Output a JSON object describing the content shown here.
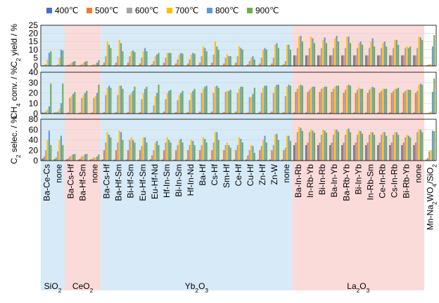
{
  "chart_data": [
    {
      "type": "bar",
      "ylabel_main": "C",
      "ylabel_sub": "2",
      "ylabel_rest": " yield / %",
      "ylim": [
        0,
        25
      ],
      "yticks": [
        "0",
        "5",
        "10",
        "15",
        "20",
        "25"
      ],
      "categories": [
        "Ba-Ce-Cs",
        "none",
        "Ba-Cs-Hf",
        "Ba-Hf-Sm",
        "none",
        "Ba-Cs-Hf",
        "Ba-Hf-Sm",
        "Bi-Hf-Sm",
        "Eu-Hf-Sm",
        "Eu-Hf-Nd",
        "Hf-In-Sm",
        "Bi-In-Sm",
        "Hf-In-Nd",
        "Ba-Hf",
        "Cs-Hf",
        "Sm-Hf",
        "Ce-Hf",
        "Cu-Hf",
        "Zn-Hf",
        "Zn-W",
        "none",
        "Ba-In-Rb",
        "In-Rb-Yb",
        "Bi-In-Rb",
        "Ba-In-Yb",
        "Ba-Rb-Yb",
        "Bi-In-Yb",
        "In-Rb-Sm",
        "Ce-In-Rb",
        "Cs-In-Rb",
        "Bi-Rb-Yb",
        "none",
        "Mn-Na2WO4/SiO2"
      ],
      "series": [
        {
          "name": "400℃",
          "values": [
            0.3,
            0.2,
            0.3,
            0.2,
            0.2,
            0.5,
            0.5,
            0.4,
            0.4,
            0.3,
            0.3,
            0.3,
            0.3,
            0.4,
            0.4,
            0.3,
            0.3,
            0.3,
            0.3,
            0.3,
            0.3,
            6.5,
            6.5,
            6.5,
            6.5,
            6.5,
            6.5,
            6.5,
            6.5,
            6.5,
            6.5,
            6.5,
            0.3
          ]
        },
        {
          "name": "500℃",
          "values": [
            0.5,
            0.4,
            0.6,
            0.5,
            0.5,
            2,
            2,
            2,
            1.5,
            1,
            2,
            1.5,
            1.5,
            2,
            2,
            1.5,
            2,
            1,
            1.5,
            1.5,
            1,
            6.5,
            6.5,
            6.5,
            6.5,
            6.5,
            6.5,
            6.5,
            6.5,
            6.5,
            6.5,
            6.5,
            0.5
          ]
        },
        {
          "name": "600℃",
          "values": [
            1,
            1,
            1,
            1,
            1,
            6,
            6,
            6,
            5,
            3,
            5,
            4,
            4,
            6,
            7,
            5,
            6,
            3,
            5,
            5,
            3,
            11,
            11,
            11,
            11,
            11,
            11,
            11,
            11,
            11,
            11,
            11,
            1
          ]
        },
        {
          "name": "700℃",
          "values": [
            4,
            5,
            2,
            2,
            1,
            15,
            16,
            9,
            9,
            6,
            8,
            7,
            7,
            12,
            15,
            7,
            12,
            5,
            10,
            13,
            13,
            18,
            18,
            16,
            17,
            18,
            14,
            15,
            14,
            16,
            12,
            18,
            1
          ]
        },
        {
          "name": "800℃",
          "values": [
            8,
            10,
            2.5,
            2.5,
            2,
            13,
            14,
            9.5,
            11,
            7,
            8,
            8,
            8,
            11,
            12,
            6,
            11,
            6,
            11,
            14,
            13,
            18.5,
            17,
            17.5,
            18.5,
            18,
            15,
            17,
            15,
            16,
            11,
            17.5,
            12
          ]
        },
        {
          "name": "900℃",
          "values": [
            9,
            9.5,
            3,
            3,
            3.5,
            11,
            9,
            8.5,
            9,
            8,
            8,
            7.5,
            7.5,
            9,
            10,
            6,
            10,
            4,
            10,
            11,
            10,
            15,
            14,
            14,
            15,
            14,
            13,
            12,
            12,
            13,
            12,
            16,
            19
          ]
        }
      ]
    },
    {
      "type": "bar",
      "ylabel_main": "CH",
      "ylabel_sub": "4",
      "ylabel_rest": " conv. / %",
      "ylim": [
        0,
        40
      ],
      "yticks": [
        "0",
        "10",
        "20",
        "30",
        "40"
      ],
      "categories": [
        "Ba-Ce-Cs",
        "none",
        "Ba-Cs-Hf",
        "Ba-Hf-Sm",
        "none",
        "Ba-Cs-Hf",
        "Ba-Hf-Sm",
        "Bi-Hf-Sm",
        "Eu-Hf-Sm",
        "Eu-Hf-Nd",
        "Hf-In-Sm",
        "Bi-In-Sm",
        "Hf-In-Nd",
        "Ba-Hf",
        "Cs-Hf",
        "Sm-Hf",
        "Ce-Hf",
        "Cu-Hf",
        "Zn-Hf",
        "Zn-W",
        "none",
        "Ba-In-Rb",
        "In-Rb-Yb",
        "Bi-In-Rb",
        "Ba-In-Yb",
        "Ba-Rb-Yb",
        "Bi-In-Yb",
        "In-Rb-Sm",
        "Ce-In-Rb",
        "Cs-In-Rb",
        "Bi-Rb-Yb",
        "none",
        "Mn-Na2WO4/SiO2"
      ],
      "series": [
        {
          "name": "400℃",
          "values": [
            1,
            1,
            0.5,
            0.5,
            0.5,
            0.5,
            0.5,
            0.5,
            0.5,
            0.5,
            0.5,
            0.5,
            0.5,
            0.5,
            0.5,
            0.5,
            0.5,
            0.5,
            0.5,
            0.5,
            0.5,
            1,
            1,
            1,
            1,
            1,
            1,
            1,
            1,
            1,
            1,
            1,
            0.5
          ]
        },
        {
          "name": "500℃",
          "values": [
            1,
            1,
            1,
            1,
            1,
            1.5,
            1.5,
            1.5,
            1.5,
            1,
            2,
            1.5,
            1.5,
            2,
            2,
            1.5,
            2,
            1,
            2,
            2,
            1.5,
            21,
            21,
            21,
            21,
            20,
            20,
            20,
            20,
            20,
            20,
            20,
            0.5
          ]
        },
        {
          "name": "600℃",
          "values": [
            2,
            2,
            15,
            15,
            15,
            18,
            18,
            18,
            14,
            8,
            14,
            13,
            13,
            20,
            20,
            21,
            20,
            16,
            20,
            20,
            17,
            24,
            23,
            24,
            24,
            23,
            23,
            23,
            22,
            22,
            22,
            22,
            1
          ]
        },
        {
          "name": "700℃",
          "values": [
            4,
            5,
            17,
            18,
            17,
            25,
            27,
            20,
            20,
            17,
            20,
            18,
            20,
            24,
            26,
            22,
            24,
            16,
            25,
            26,
            26,
            27,
            25,
            25,
            26,
            27,
            25,
            25,
            24,
            24,
            23,
            28,
            2
          ]
        },
        {
          "name": "800℃",
          "values": [
            7,
            10,
            19,
            20,
            20,
            27,
            27,
            22,
            24,
            20,
            22,
            20,
            22,
            26,
            27,
            22,
            26,
            19,
            27,
            28,
            28,
            28,
            26,
            26,
            27,
            28,
            24,
            26,
            24,
            24,
            23,
            29,
            21
          ]
        },
        {
          "name": "900℃",
          "values": [
            29,
            29,
            21,
            22,
            28,
            25,
            24,
            26,
            26,
            28,
            23,
            22,
            24,
            27,
            25,
            23,
            26,
            25,
            27,
            28,
            27,
            27,
            26,
            26,
            27,
            27,
            24,
            25,
            24,
            25,
            23,
            28,
            34
          ]
        }
      ]
    },
    {
      "type": "bar",
      "ylabel_main": "C",
      "ylabel_sub": "2",
      "ylabel_rest": " selec. / %",
      "ylim": [
        0,
        80
      ],
      "yticks": [
        "0",
        "20",
        "40",
        "60",
        "80"
      ],
      "categories": [
        "Ba-Ce-Cs",
        "none",
        "Ba-Cs-Hf",
        "Ba-Hf-Sm",
        "none",
        "Ba-Cs-Hf",
        "Ba-Hf-Sm",
        "Bi-Hf-Sm",
        "Eu-Hf-Sm",
        "Eu-Hf-Nd",
        "Hf-In-Sm",
        "Bi-In-Sm",
        "Hf-In-Nd",
        "Ba-Hf",
        "Cs-Hf",
        "Sm-Hf",
        "Ce-Hf",
        "Cu-Hf",
        "Zn-Hf",
        "Zn-W",
        "none",
        "Ba-In-Rb",
        "In-Rb-Yb",
        "Bi-In-Rb",
        "Ba-In-Yb",
        "Ba-Rb-Yb",
        "Bi-In-Yb",
        "In-Rb-Sm",
        "Ce-In-Rb",
        "Cs-In-Rb",
        "Bi-Rb-Yb",
        "none",
        "Mn-Na2WO4/SiO2"
      ],
      "series": [
        {
          "name": "400℃",
          "values": [
            4,
            3,
            2,
            2,
            2,
            2,
            2,
            2,
            2,
            2,
            2,
            2,
            2,
            2,
            2,
            2,
            2,
            2,
            2,
            2,
            2,
            30,
            30,
            30,
            30,
            30,
            30,
            30,
            30,
            30,
            30,
            30,
            2
          ]
        },
        {
          "name": "500℃",
          "values": [
            8,
            6,
            4,
            4,
            3,
            20,
            20,
            20,
            20,
            10,
            20,
            20,
            20,
            20,
            20,
            20,
            20,
            10,
            20,
            20,
            20,
            35,
            35,
            35,
            35,
            35,
            35,
            35,
            35,
            35,
            35,
            35,
            5
          ]
        },
        {
          "name": "600℃",
          "values": [
            20,
            18,
            8,
            8,
            6,
            35,
            35,
            40,
            28,
            20,
            35,
            30,
            30,
            30,
            35,
            30,
            30,
            20,
            28,
            30,
            25,
            55,
            55,
            50,
            50,
            50,
            50,
            50,
            50,
            50,
            45,
            55,
            18
          ]
        },
        {
          "name": "700℃",
          "values": [
            40,
            40,
            10,
            10,
            6,
            55,
            58,
            45,
            45,
            35,
            45,
            40,
            40,
            45,
            55,
            35,
            45,
            30,
            40,
            50,
            48,
            65,
            60,
            60,
            60,
            60,
            58,
            55,
            55,
            55,
            50,
            60,
            20
          ]
        },
        {
          "name": "800℃",
          "values": [
            58,
            48,
            12,
            12,
            8,
            50,
            55,
            40,
            45,
            38,
            40,
            42,
            38,
            42,
            55,
            30,
            42,
            28,
            48,
            52,
            48,
            63,
            58,
            58,
            60,
            62,
            57,
            55,
            55,
            55,
            48,
            60,
            58
          ]
        },
        {
          "name": "900℃",
          "values": [
            30,
            30,
            13,
            13,
            12,
            45,
            40,
            35,
            35,
            30,
            35,
            35,
            30,
            35,
            40,
            25,
            35,
            15,
            35,
            40,
            38,
            57,
            54,
            54,
            56,
            55,
            52,
            50,
            48,
            50,
            45,
            55,
            57
          ]
        }
      ]
    }
  ],
  "legend": [
    {
      "label": "400℃",
      "color": "#4472C4"
    },
    {
      "label": "500℃",
      "color": "#ED7D31"
    },
    {
      "label": "600℃",
      "color": "#A5A5A5"
    },
    {
      "label": "700℃",
      "color": "#FFC000"
    },
    {
      "label": "800℃",
      "color": "#5B9BD5"
    },
    {
      "label": "900℃",
      "color": "#70AD47"
    }
  ],
  "x_labels": [
    {
      "text": "Ba-Ce-Cs"
    },
    {
      "text": "none"
    },
    {
      "text": "Ba-Cs-Hf"
    },
    {
      "text": "Ba-Hf-Sm"
    },
    {
      "text": "none"
    },
    {
      "text": "Ba-Cs-Hf"
    },
    {
      "text": "Ba-Hf-Sm"
    },
    {
      "text": "Bi-Hf-Sm"
    },
    {
      "text": "Eu-Hf-Sm"
    },
    {
      "text": "Eu-Hf-Nd"
    },
    {
      "text": "Hf-In-Sm"
    },
    {
      "text": "Bi-In-Sm"
    },
    {
      "text": "Hf-In-Nd"
    },
    {
      "text": "Ba-Hf"
    },
    {
      "text": "Cs-Hf"
    },
    {
      "text": "Sm-Hf"
    },
    {
      "text": "Ce-Hf"
    },
    {
      "text": "Cu-Hf"
    },
    {
      "text": "Zn-Hf"
    },
    {
      "text": "Zn-W"
    },
    {
      "text": "none"
    },
    {
      "text": "Ba-In-Rb"
    },
    {
      "text": "In-Rb-Yb"
    },
    {
      "text": "Bi-In-Rb"
    },
    {
      "text": "Ba-In-Yb"
    },
    {
      "text": "Ba-Rb-Yb"
    },
    {
      "text": "Bi-In-Yb"
    },
    {
      "text": "In-Rb-Sm"
    },
    {
      "text": "Ce-In-Rb"
    },
    {
      "text": "Cs-In-Rb"
    },
    {
      "text": "Bi-Rb-Yb"
    },
    {
      "text": "none"
    },
    {
      "text": "Mn-Na",
      "sub": "2",
      "rest": "WO",
      "sub2": "4",
      "rest2": "/SiO",
      "sub3": "2"
    }
  ],
  "supports": [
    {
      "label": "SiO",
      "sub": "2",
      "color": "#D6EAF8",
      "text_color": "#2E75B6",
      "from": 0,
      "to": 1
    },
    {
      "label": "CeO",
      "sub": "2",
      "color": "#FBDADA",
      "text_color": "#C00000",
      "from": 2,
      "to": 4
    },
    {
      "label": "Yb",
      "sub": "2",
      "label2": "O",
      "sub2": "3",
      "color": "#D6EAF8",
      "text_color": "#2E75B6",
      "from": 5,
      "to": 20
    },
    {
      "label": "La",
      "sub": "2",
      "label2": "O",
      "sub2": "3",
      "color": "#FBDADA",
      "text_color": "#C00000",
      "from": 21,
      "to": 31
    }
  ]
}
